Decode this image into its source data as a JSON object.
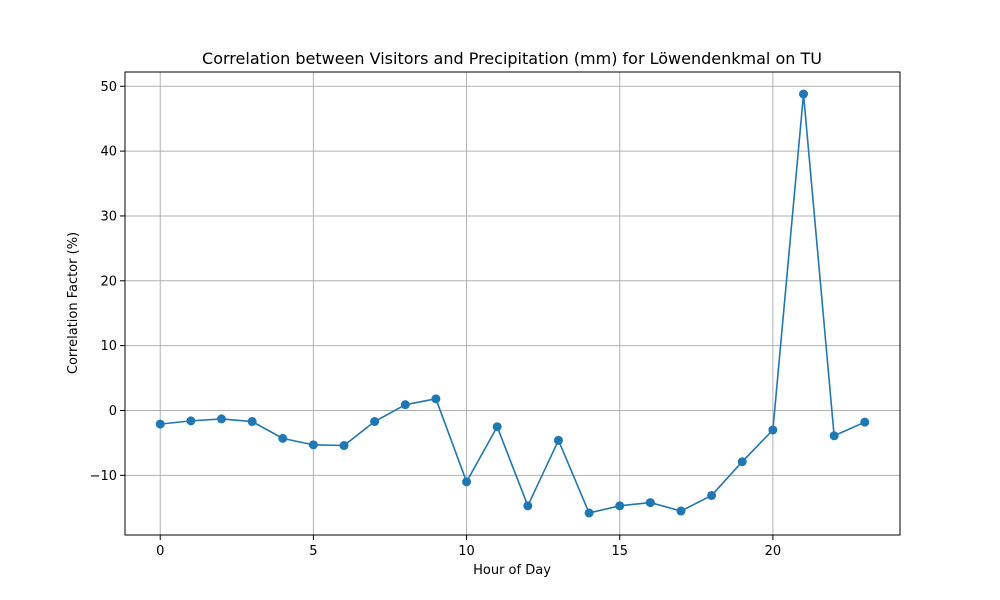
{
  "chart_data": {
    "type": "line",
    "title": "Correlation between Visitors and Precipitation (mm) for Löwendenkmal on TU",
    "xlabel": "Hour of Day",
    "ylabel": "Correlation Factor (%)",
    "xlim": [
      -1.15,
      24.15
    ],
    "ylim": [
      -19.2,
      52.2
    ],
    "xticks": [
      0,
      5,
      10,
      15,
      20
    ],
    "yticks": [
      -10,
      0,
      10,
      20,
      30,
      40,
      50
    ],
    "grid": true,
    "color": "#1f77b4",
    "x": [
      0,
      1,
      2,
      3,
      4,
      5,
      6,
      7,
      8,
      9,
      10,
      11,
      12,
      13,
      14,
      15,
      16,
      17,
      18,
      19,
      20,
      21,
      22,
      23
    ],
    "y": [
      -2.1,
      -1.6,
      -1.3,
      -1.7,
      -4.3,
      -5.3,
      -5.4,
      -1.7,
      0.9,
      1.8,
      -11.0,
      -2.5,
      -14.7,
      -4.6,
      -15.8,
      -14.7,
      -14.2,
      -15.5,
      -13.1,
      -7.9,
      -3.0,
      48.8,
      -3.9,
      -1.8
    ]
  }
}
